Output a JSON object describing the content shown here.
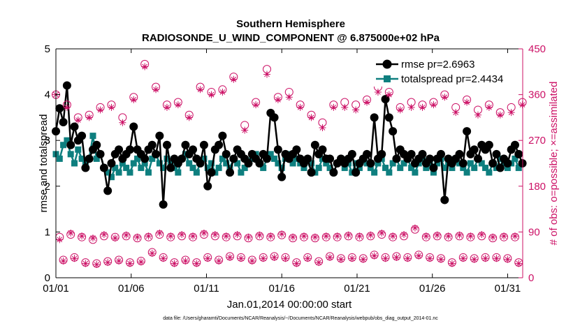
{
  "chart_data": {
    "type": "line",
    "title_line1": "Southern Hemisphere",
    "title_line2": "RADIOSONDE_U_WIND_COMPONENT @ 6.875000e+02 hPa",
    "xlabel": "Jan.01,2014 00:00:00 start",
    "ylabel_left": "rmse and totalspread",
    "ylabel_right": "# of obs: o=possible; ×=assimilated",
    "footnote": "data file: /Users/gharamti/Documents/NCAR/Reanalysis/~/Documents/NCAR/Reanalysis/webpub/obs_diag_output_2014-01.nc",
    "x_tick_labels": [
      "01/01",
      "01/06",
      "01/11",
      "01/16",
      "01/21",
      "01/26",
      "01/31"
    ],
    "x_tick_days": [
      1,
      6,
      11,
      16,
      21,
      26,
      31
    ],
    "x_range_days": [
      1,
      32
    ],
    "ylim_left": [
      0,
      5
    ],
    "yticks_left": [
      "0",
      "1",
      "2",
      "3",
      "4",
      "5"
    ],
    "ylim_right": [
      0,
      450
    ],
    "yticks_right": [
      "0",
      "90",
      "180",
      "270",
      "360",
      "450"
    ],
    "colors": {
      "rmse": "#000000",
      "spread": "#0e7f7f",
      "obs": "#cc1166"
    },
    "legend": [
      {
        "label": "rmse pr=2.6963",
        "color": "#000000"
      },
      {
        "label": "totalspread pr=2.4434",
        "color": "#0e7f7f"
      }
    ],
    "rmse": [
      3.2,
      3.7,
      3.4,
      4.2,
      2.9,
      3.3,
      3.0,
      3.1,
      2.4,
      2.6,
      2.8,
      2.9,
      2.7,
      2.4,
      1.9,
      2.5,
      2.7,
      2.8,
      2.6,
      2.7,
      2.8,
      3.3,
      2.8,
      2.7,
      2.6,
      2.8,
      2.9,
      2.7,
      3.1,
      1.6,
      2.9,
      2.4,
      2.6,
      2.5,
      2.6,
      2.9,
      2.7,
      2.8,
      2.6,
      2.5,
      2.9,
      2.0,
      2.3,
      2.8,
      2.9,
      3.1,
      2.7,
      2.3,
      2.6,
      2.8,
      2.7,
      2.6,
      2.5,
      2.7,
      2.6,
      2.5,
      2.7,
      2.6,
      3.6,
      3.5,
      2.8,
      2.2,
      2.7,
      2.6,
      2.7,
      2.8,
      2.6,
      2.5,
      2.6,
      2.3,
      2.9,
      2.7,
      2.8,
      2.6,
      2.6,
      2.3,
      2.5,
      2.6,
      2.5,
      2.6,
      2.7,
      2.3,
      2.5,
      2.6,
      2.7,
      2.5,
      3.5,
      2.6,
      2.7,
      3.9,
      3.5,
      3.2,
      2.6,
      2.8,
      2.7,
      2.6,
      2.7,
      2.5,
      2.6,
      2.7,
      2.5,
      2.6,
      2.4,
      2.6,
      2.7,
      1.7,
      2.6,
      2.5,
      2.6,
      2.7,
      2.5,
      3.2,
      2.7,
      2.8,
      2.6,
      2.9,
      2.8,
      2.9,
      2.5,
      2.7,
      2.4,
      2.6,
      2.5,
      2.8,
      2.9,
      2.7,
      2.5
    ],
    "totalspread": [
      2.7,
      2.6,
      2.9,
      3.0,
      2.7,
      2.5,
      2.8,
      2.6,
      2.5,
      2.6,
      3.1,
      2.6,
      2.7,
      2.4,
      2.3,
      2.2,
      2.4,
      2.3,
      2.5,
      2.4,
      2.3,
      2.5,
      2.6,
      2.4,
      2.5,
      2.3,
      2.6,
      2.7,
      2.5,
      2.4,
      2.6,
      2.5,
      2.4,
      2.3,
      2.6,
      2.7,
      2.5,
      2.4,
      2.3,
      2.5,
      2.6,
      2.4,
      2.5,
      2.3,
      2.4,
      2.6,
      2.5,
      2.4,
      2.6,
      2.5,
      2.3,
      2.4,
      2.5,
      2.6,
      2.7,
      2.5,
      2.4,
      2.6,
      2.7,
      2.6,
      2.5,
      2.4,
      2.6,
      2.7,
      2.5,
      2.6,
      2.5,
      2.4,
      2.6,
      2.5,
      2.3,
      2.4,
      2.6,
      2.5,
      2.4,
      2.3,
      2.5,
      2.6,
      2.4,
      2.5,
      2.3,
      2.5,
      2.4,
      2.6,
      2.5,
      2.4,
      2.3,
      2.5,
      2.6,
      2.4,
      2.3,
      2.5,
      2.6,
      2.4,
      2.5,
      2.6,
      2.4,
      2.3,
      2.5,
      2.6,
      2.4,
      2.5,
      2.3,
      2.5,
      2.6,
      2.4,
      2.5,
      2.4,
      2.6,
      2.5,
      2.4,
      2.3,
      2.5,
      2.4,
      2.6,
      2.5,
      2.4,
      2.3,
      2.5,
      2.4,
      2.6,
      2.5,
      2.4,
      2.5,
      2.6,
      2.4,
      2.5
    ],
    "obs_possible": [
      360,
      80,
      35,
      340,
      85,
      40,
      315,
      80,
      30,
      320,
      75,
      28,
      335,
      82,
      32,
      340,
      80,
      35,
      315,
      82,
      30,
      355,
      78,
      33,
      420,
      80,
      50,
      375,
      85,
      40,
      340,
      80,
      30,
      345,
      82,
      35,
      320,
      80,
      30,
      375,
      85,
      40,
      365,
      82,
      35,
      370,
      80,
      42,
      395,
      82,
      40,
      300,
      78,
      35,
      345,
      82,
      40,
      410,
      80,
      42,
      355,
      84,
      40,
      365,
      78,
      30,
      340,
      80,
      40,
      320,
      78,
      32,
      305,
      80,
      42,
      340,
      80,
      38,
      345,
      82,
      40,
      340,
      80,
      38,
      350,
      82,
      45,
      375,
      85,
      40,
      365,
      80,
      42,
      335,
      82,
      40,
      345,
      95,
      45,
      340,
      80,
      40,
      345,
      82,
      38,
      360,
      80,
      30,
      335,
      82,
      40,
      350,
      80,
      38,
      330,
      82,
      40,
      340,
      78,
      40,
      325,
      80,
      38,
      335,
      80,
      30,
      345
    ],
    "obs_assimilated": [
      360,
      75,
      33,
      335,
      88,
      38,
      310,
      82,
      28,
      315,
      78,
      26,
      330,
      85,
      30,
      335,
      78,
      33,
      305,
      84,
      28,
      350,
      80,
      31,
      415,
      82,
      48,
      370,
      88,
      38,
      335,
      82,
      28,
      340,
      85,
      33,
      315,
      82,
      28,
      370,
      88,
      38,
      360,
      85,
      33,
      365,
      82,
      40,
      390,
      85,
      38,
      290,
      80,
      33,
      340,
      84,
      38,
      400,
      82,
      40,
      350,
      86,
      38,
      355,
      80,
      28,
      335,
      82,
      38,
      315,
      80,
      30,
      295,
      82,
      40,
      335,
      82,
      36,
      335,
      84,
      38,
      330,
      82,
      36,
      345,
      84,
      43,
      365,
      88,
      38,
      360,
      82,
      40,
      330,
      85,
      38,
      335,
      98,
      43,
      335,
      82,
      38,
      340,
      84,
      36,
      355,
      82,
      28,
      325,
      84,
      38,
      345,
      82,
      36,
      320,
      85,
      38,
      335,
      80,
      38,
      320,
      82,
      36,
      325,
      82,
      28,
      340
    ]
  }
}
